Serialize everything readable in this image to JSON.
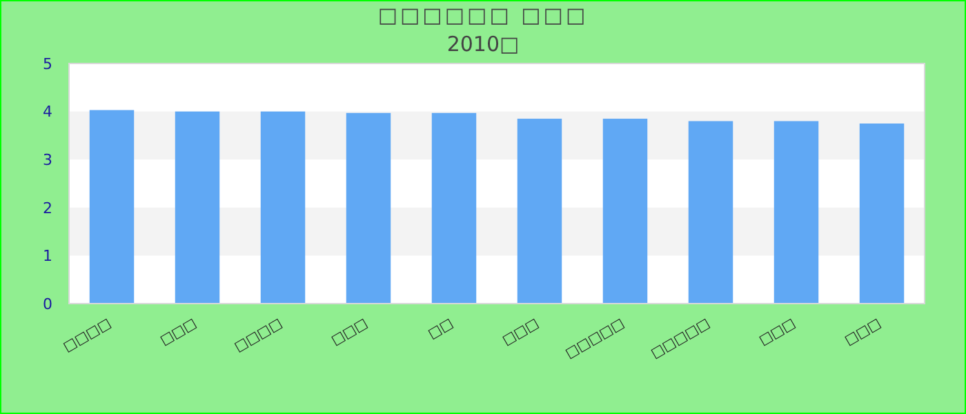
{
  "chart_data": {
    "type": "bar",
    "title": "□□□□□□ □□□",
    "subtitle": "2010□",
    "categories": [
      "□□□□",
      "□□□",
      "□□□□",
      "□□□",
      "□□",
      "□□□",
      "□□□□□",
      "□□□□□",
      "□□□",
      "□□□"
    ],
    "values": [
      4.03,
      4.0,
      4.0,
      3.97,
      3.97,
      3.85,
      3.85,
      3.8,
      3.8,
      3.75
    ],
    "color": "#60a8f4",
    "ylim": [
      0,
      5
    ],
    "yticks": [
      0,
      1,
      2,
      3,
      4,
      5
    ],
    "bands": [
      {
        "axis": "y",
        "from": 1,
        "to": 2,
        "color": "#f3f3f3"
      },
      {
        "axis": "y",
        "from": 3,
        "to": 4,
        "color": "#f3f3f3"
      }
    ]
  }
}
